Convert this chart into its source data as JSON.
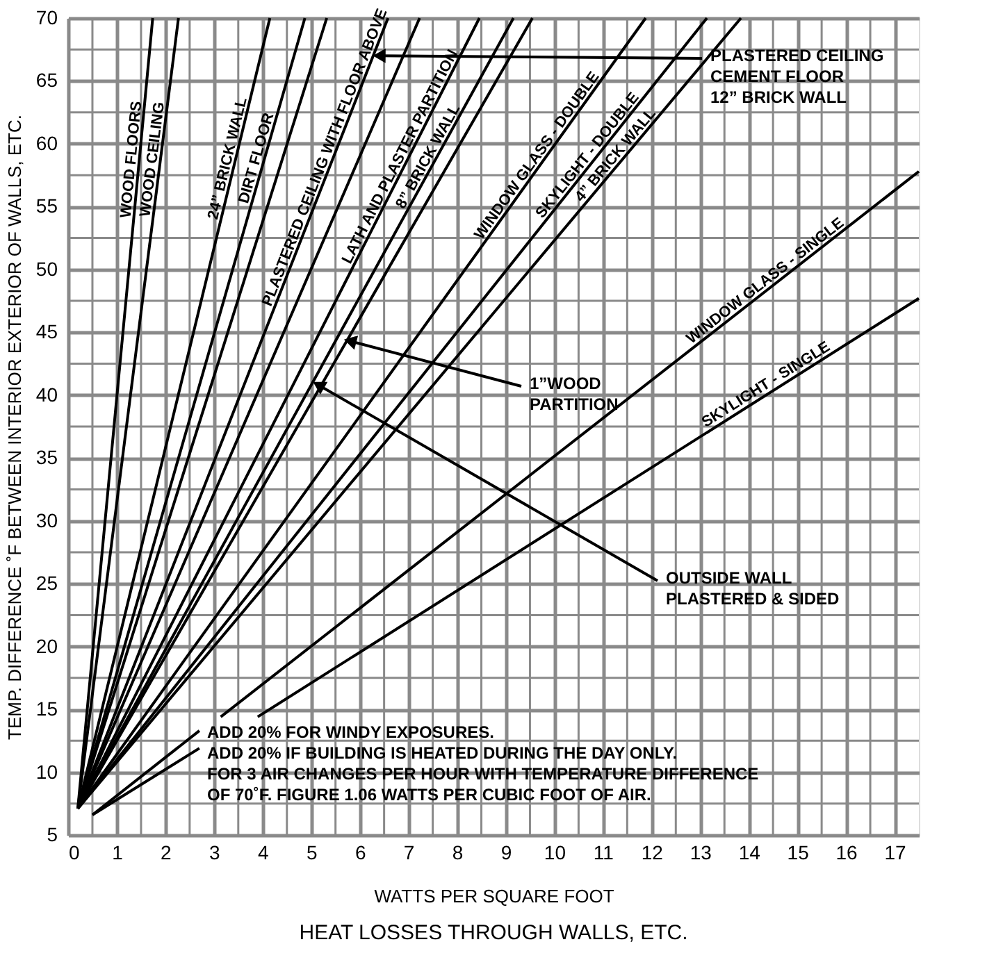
{
  "chart_data": {
    "type": "line",
    "title": "HEAT LOSSES THROUGH WALLS, ETC.",
    "xlabel": "WATTS PER SQUARE FOOT",
    "ylabel": "TEMP. DIFFERENCE ˚F  BETWEEN INTERIOR  EXTERIOR OF WALLS, ETC.",
    "xlim": [
      0,
      17.5
    ],
    "ylim": [
      5,
      70
    ],
    "xticks": [
      0,
      1,
      2,
      3,
      4,
      5,
      6,
      7,
      8,
      9,
      10,
      11,
      12,
      13,
      14,
      15,
      16,
      17
    ],
    "yticks": [
      5,
      10,
      15,
      20,
      25,
      30,
      35,
      40,
      45,
      50,
      55,
      60,
      65,
      70
    ],
    "grid": true,
    "series": [
      {
        "name": "WOOD FLOORS",
        "color": "#000000",
        "x": [
          0.2,
          1.74
        ],
        "values": [
          7.1,
          70
        ]
      },
      {
        "name": "WOOD CEILING",
        "color": "#000000",
        "x": [
          0.2,
          2.27
        ],
        "values": [
          7.1,
          70
        ]
      },
      {
        "name": "24” BRICK WALL",
        "color": "#000000",
        "x": [
          0.2,
          4.15
        ],
        "values": [
          7.1,
          70
        ]
      },
      {
        "name": "DIRT FLOOR",
        "color": "#000000",
        "x": [
          0.2,
          4.87
        ],
        "values": [
          7.1,
          70
        ]
      },
      {
        "color": "#000000",
        "x": [
          0.2,
          5.32
        ],
        "values": [
          7.1,
          70
        ]
      },
      {
        "name": "PLASTERED CEILING WITH FLOOR ABOVE",
        "color": "#000000",
        "x": [
          0.2,
          6.58
        ],
        "values": [
          7.1,
          70
        ]
      },
      {
        "color": "#000000",
        "x": [
          0.2,
          7.23
        ],
        "values": [
          7.1,
          70
        ]
      },
      {
        "name": "LATH AND PLASTER PARTITION",
        "color": "#000000",
        "x": [
          0.2,
          8.46
        ],
        "values": [
          7.1,
          70
        ]
      },
      {
        "name": "8” BRICK WALL",
        "color": "#000000",
        "x": [
          0.2,
          9.16
        ],
        "values": [
          7.1,
          70
        ]
      },
      {
        "color": "#000000",
        "x": [
          0.2,
          9.55
        ],
        "values": [
          7.1,
          70
        ]
      },
      {
        "name": "WINDOW GLASS - DOUBLE",
        "color": "#000000",
        "x": [
          0.2,
          11.88
        ],
        "values": [
          7.1,
          70
        ]
      },
      {
        "name": "SKYLIGHT - DOUBLE",
        "color": "#000000",
        "x": [
          0.2,
          13.14
        ],
        "values": [
          7.1,
          70
        ]
      },
      {
        "name": "4” BRICK WALL",
        "color": "#000000",
        "x": [
          0.2,
          13.84
        ],
        "values": [
          7.1,
          70
        ]
      },
      {
        "name": "WINDOW GLASS - SINGLE",
        "color": "#000000",
        "x": [
          0.5,
          2.7,
          2.9,
          3.14,
          17.5
        ],
        "values": [
          6.6,
          13.3,
          null,
          14.4,
          57.8
        ]
      },
      {
        "name": "SKYLIGHT - SINGLE",
        "color": "#000000",
        "x": [
          0.5,
          2.7,
          3.3,
          3.9,
          17.5
        ],
        "values": [
          6.6,
          11.9,
          null,
          14.4,
          47.7
        ]
      }
    ],
    "annotations": [
      {
        "text": "PLASTERED CEILING\nCEMENT FLOOR\n12” BRICK WALL",
        "x": 6.4,
        "y": 67
      },
      {
        "text": "1”WOOD\nPARTITION",
        "x": 5.8,
        "y": 44.3
      },
      {
        "text": "OUTSIDE WALL\nPLASTERED & SIDED",
        "x": 5.15,
        "y": 40.8
      },
      "ADD 20% FOR WINDY EXPOSURES.\nADD 20% IF BUILDING IS HEATED DURING THE DAY ONLY.\nFOR 3 AIR CHANGES PER HOUR WITH TEMPERATURE DIFFERENCE\nOF 70˚F.  FIGURE 1.06 WATTS PER CUBIC FOOT OF AIR."
    ]
  }
}
